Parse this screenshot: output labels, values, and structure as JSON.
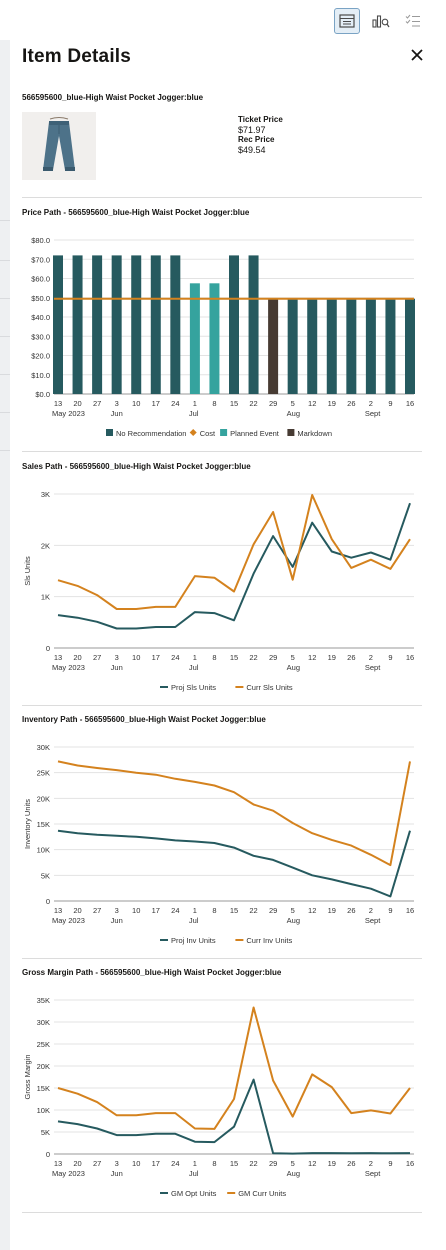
{
  "panel": {
    "title": "Item Details"
  },
  "item": {
    "name": "566595600_blue-High Waist Pocket Jogger:blue",
    "ticket_price_label": "Ticket Price",
    "ticket_price": "$71.97",
    "rec_price_label": "Rec Price",
    "rec_price": "$49.54"
  },
  "colors": {
    "teal_dark": "#265a5f",
    "teal_light": "#35a39e",
    "orange": "#d4821e",
    "brown": "#473b33",
    "accent": "#7aa3c4"
  },
  "icons": [
    "table-view-icon",
    "chart-search-icon",
    "checklist-icon",
    "close-icon"
  ],
  "x_labels": [
    "13",
    "20",
    "27",
    "3",
    "10",
    "17",
    "24",
    "1",
    "8",
    "15",
    "22",
    "29",
    "5",
    "12",
    "19",
    "26",
    "2",
    "9",
    "16"
  ],
  "month_labels": [
    {
      "text": "May 2023",
      "index": 0
    },
    {
      "text": "Jun",
      "index": 3
    },
    {
      "text": "Jul",
      "index": 7
    },
    {
      "text": "Aug",
      "index": 12
    },
    {
      "text": "Sept",
      "index": 16
    }
  ],
  "chart_data": [
    {
      "type": "bar",
      "title": "Price Path  -  566595600_blue-High Waist Pocket Jogger:blue",
      "ylim": [
        0,
        80
      ],
      "yticks": [
        "$0.0",
        "$10.0",
        "$20.0",
        "$30.0",
        "$40.0",
        "$50.0",
        "$60.0",
        "$70.0",
        "$80.0"
      ],
      "values": [
        72,
        72,
        72,
        72,
        72,
        72,
        72,
        57.5,
        57.5,
        72,
        72,
        49.5,
        49.5,
        49.5,
        49.5,
        49.5,
        49.5,
        49.5,
        49.5
      ],
      "bar_types": [
        "no_rec",
        "no_rec",
        "no_rec",
        "no_rec",
        "no_rec",
        "no_rec",
        "no_rec",
        "planned",
        "planned",
        "no_rec",
        "no_rec",
        "markdown",
        "no_rec",
        "no_rec",
        "no_rec",
        "no_rec",
        "no_rec",
        "no_rec",
        "no_rec"
      ],
      "cost": 49.5,
      "legend": [
        {
          "name": "No Recommendation",
          "color": "#265a5f",
          "shape": "square"
        },
        {
          "name": "Cost",
          "color": "#d4821e",
          "shape": "diamond"
        },
        {
          "name": "Planned Event",
          "color": "#35a39e",
          "shape": "square"
        },
        {
          "name": "Markdown",
          "color": "#473b33",
          "shape": "square"
        }
      ],
      "grid": true
    },
    {
      "type": "line",
      "title": "Sales Path  -  566595600_blue-High Waist Pocket Jogger:blue",
      "ylabel": "Sls Units",
      "ylim": [
        0,
        3000
      ],
      "yticks": [
        "0",
        "1K",
        "2K",
        "3K"
      ],
      "series": [
        {
          "name": "Proj Sls Units",
          "color": "#265a5f",
          "values": [
            640,
            590,
            510,
            380,
            380,
            410,
            410,
            700,
            680,
            540,
            1450,
            2180,
            1580,
            2440,
            1880,
            1760,
            1860,
            1720,
            2820
          ]
        },
        {
          "name": "Curr Sls Units",
          "color": "#d4821e",
          "values": [
            1320,
            1210,
            1030,
            760,
            760,
            800,
            800,
            1400,
            1370,
            1100,
            2020,
            2650,
            1330,
            2980,
            2120,
            1560,
            1720,
            1540,
            2120
          ]
        }
      ],
      "legend": [
        "Proj Sls Units",
        "Curr Sls Units"
      ],
      "grid": true
    },
    {
      "type": "line",
      "title": "Inventory Path  -  566595600_blue-High Waist Pocket Jogger:blue",
      "ylabel": "Inventory Units",
      "ylim": [
        0,
        30000
      ],
      "yticks": [
        "0",
        "5K",
        "10K",
        "15K",
        "20K",
        "25K",
        "30K"
      ],
      "series": [
        {
          "name": "Proj Inv Units",
          "color": "#265a5f",
          "values": [
            13700,
            13200,
            12900,
            12700,
            12500,
            12200,
            11800,
            11600,
            11300,
            10400,
            8800,
            8000,
            6500,
            5000,
            4200,
            3300,
            2400,
            900,
            13700
          ]
        },
        {
          "name": "Curr Inv Units",
          "color": "#d4821e",
          "values": [
            27200,
            26400,
            25900,
            25500,
            25000,
            24600,
            23800,
            23200,
            22500,
            21200,
            18800,
            17600,
            15200,
            13200,
            11900,
            10800,
            9000,
            7000,
            27200
          ]
        }
      ],
      "legend": [
        "Proj Inv Units",
        "Curr Inv Units"
      ],
      "grid": true
    },
    {
      "type": "line",
      "title": "Gross Margin Path  -  566595600_blue-High Waist Pocket Jogger:blue",
      "ylabel": "Gross Margin",
      "ylim": [
        0,
        35000
      ],
      "yticks": [
        "0",
        "5K",
        "10K",
        "15K",
        "20K",
        "25K",
        "30K",
        "35K"
      ],
      "series": [
        {
          "name": "GM Opt Units",
          "color": "#265a5f",
          "values": [
            7400,
            6800,
            5800,
            4300,
            4300,
            4600,
            4600,
            2800,
            2700,
            6200,
            16900,
            150,
            100,
            200,
            200,
            150,
            200,
            150,
            200
          ]
        },
        {
          "name": "GM Curr Units",
          "color": "#d4821e",
          "values": [
            15000,
            13700,
            11800,
            8800,
            8800,
            9300,
            9300,
            5800,
            5700,
            12500,
            33300,
            16700,
            8500,
            18100,
            15200,
            9300,
            9900,
            9200,
            15000
          ]
        }
      ],
      "legend": [
        "GM Opt Units",
        "GM Curr Units"
      ],
      "grid": true
    }
  ]
}
